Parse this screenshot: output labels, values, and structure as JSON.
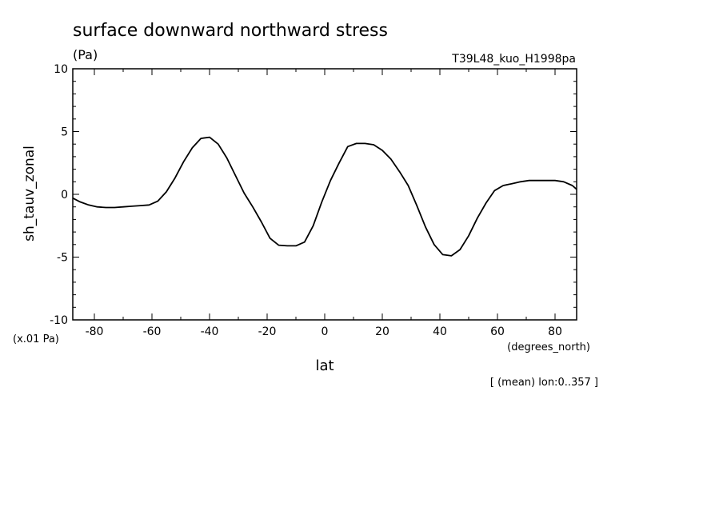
{
  "header": {
    "title": "surface downward northward stress",
    "units": "(Pa)",
    "run_label": "T39L48_kuo_H1998pa"
  },
  "footer": {
    "scale_note": "(x.01 Pa)",
    "x_units": "(degrees_north)",
    "mean_note": "[ (mean) lon:0..357 ]"
  },
  "chart_data": {
    "type": "line",
    "xlabel": "lat",
    "ylabel": "sh_tauv_zonal",
    "xlim": [
      -87.5,
      87.5
    ],
    "ylim": [
      -10,
      10
    ],
    "x_ticks": [
      -80,
      -60,
      -40,
      -20,
      0,
      20,
      40,
      60,
      80
    ],
    "y_ticks": [
      -10,
      -5,
      0,
      5,
      10
    ],
    "x_tick_labels": [
      "-80",
      "-60",
      "-40",
      "-20",
      "0",
      "20",
      "40",
      "60",
      "80"
    ],
    "y_tick_labels": [
      "-10",
      "-5",
      "0",
      "5",
      "10"
    ],
    "grid": false,
    "series": [
      {
        "x": [
          -87.5,
          -85,
          -82,
          -79,
          -76,
          -73,
          -70,
          -67,
          -64,
          -61,
          -58,
          -55,
          -52,
          -49,
          -46,
          -43,
          -40,
          -37,
          -34,
          -31,
          -28,
          -25,
          -22,
          -19,
          -16,
          -13,
          -10,
          -7,
          -4,
          -1,
          2,
          5,
          8,
          11,
          14,
          17,
          20,
          23,
          26,
          29,
          32,
          35,
          38,
          41,
          44,
          47,
          50,
          53,
          56,
          59,
          62,
          65,
          68,
          71,
          74,
          77,
          80,
          83,
          86,
          87.5
        ],
        "y": [
          -0.3,
          -0.6,
          -0.85,
          -1.0,
          -1.05,
          -1.05,
          -1.0,
          -0.95,
          -0.9,
          -0.85,
          -0.55,
          0.2,
          1.3,
          2.6,
          3.7,
          4.45,
          4.55,
          4.0,
          2.9,
          1.5,
          0.1,
          -1.0,
          -2.2,
          -3.5,
          -4.05,
          -4.1,
          -4.1,
          -3.8,
          -2.5,
          -0.6,
          1.1,
          2.5,
          3.8,
          4.05,
          4.05,
          3.95,
          3.5,
          2.8,
          1.8,
          0.7,
          -0.9,
          -2.6,
          -4.0,
          -4.8,
          -4.9,
          -4.4,
          -3.3,
          -1.9,
          -0.7,
          0.3,
          0.7,
          0.85,
          1.0,
          1.1,
          1.1,
          1.1,
          1.1,
          1.0,
          0.7,
          0.4
        ]
      }
    ]
  }
}
